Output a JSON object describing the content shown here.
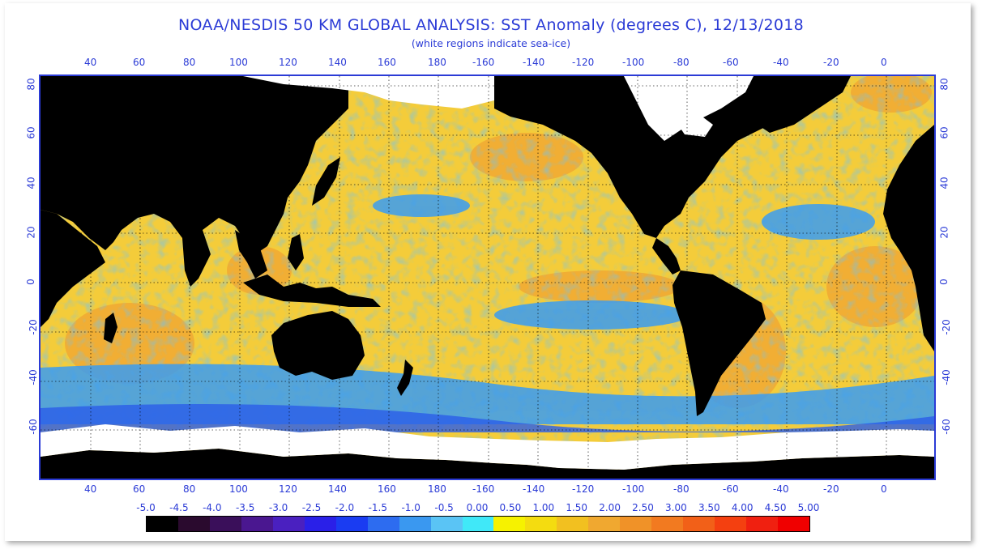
{
  "title": "NOAA/NESDIS 50 KM GLOBAL ANALYSIS: SST Anomaly (degrees C), 12/13/2018",
  "subtitle": "(white regions indicate sea-ice)",
  "lon_labels": [
    "40",
    "60",
    "80",
    "100",
    "120",
    "140",
    "160",
    "180",
    "-160",
    "-140",
    "-120",
    "-100",
    "-80",
    "-60",
    "-40",
    "-20",
    "0"
  ],
  "lat_labels": [
    "80",
    "60",
    "40",
    "20",
    "0",
    "-20",
    "-40",
    "-60"
  ],
  "colorbar": {
    "labels": [
      "-5.0",
      "-4.5",
      "-4.0",
      "-3.5",
      "-3.0",
      "-2.5",
      "-2.0",
      "-1.5",
      "-1.0",
      "-0.5",
      "0.00",
      "0.50",
      "1.00",
      "1.50",
      "2.00",
      "2.50",
      "3.00",
      "3.50",
      "4.00",
      "4.50",
      "5.00"
    ],
    "colors": [
      "#000000",
      "#2a0a2e",
      "#3a0f5a",
      "#4a1790",
      "#4a20c0",
      "#2a20e8",
      "#1a3cf2",
      "#2d6cf0",
      "#3a98f0",
      "#5ac4f5",
      "#40e8f8",
      "#f6f200",
      "#f4dc10",
      "#f2c020",
      "#f0a830",
      "#f09228",
      "#f27a20",
      "#f26018",
      "#f44010",
      "#f02010",
      "#f00000"
    ]
  },
  "legend": {
    "ice": "#ffffff",
    "land": "#000000",
    "cool": "#2f7cf0",
    "warm": "#f2c040"
  }
}
